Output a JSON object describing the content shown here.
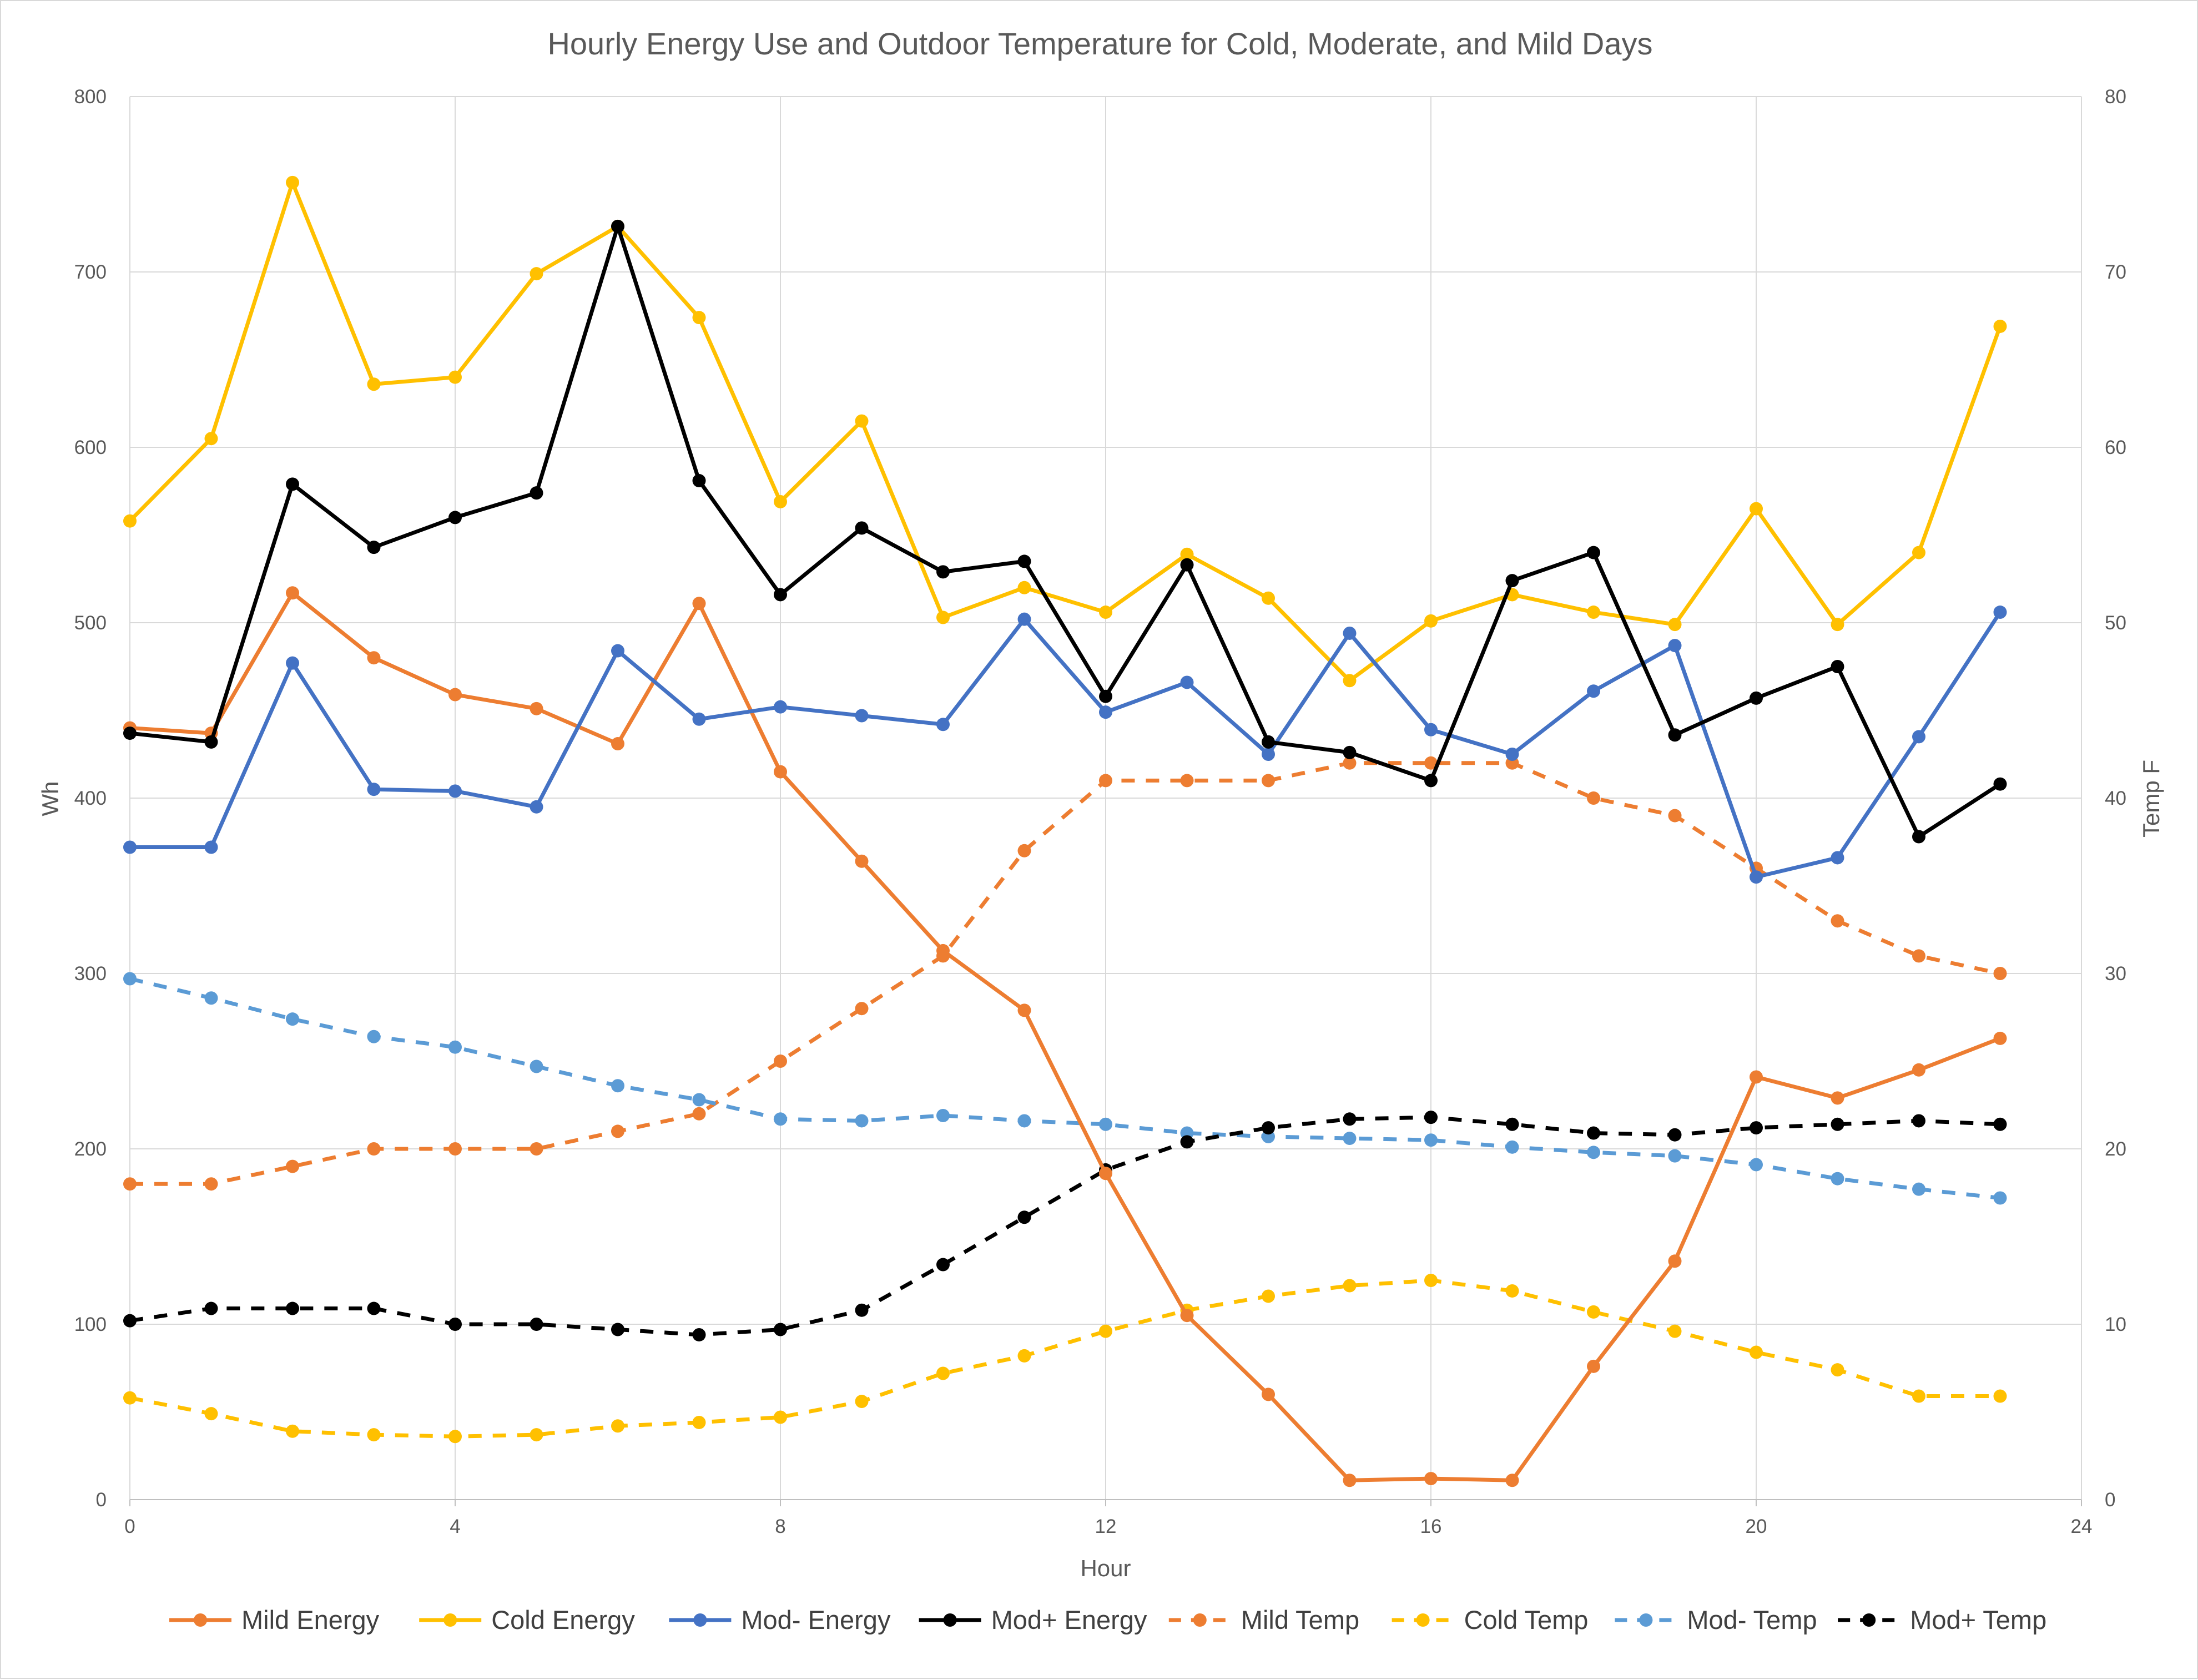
{
  "chart_data": {
    "type": "line",
    "title": "Hourly Energy Use and Outdoor Temperature for Cold, Moderate, and Mild Days",
    "xlabel": "Hour",
    "ylabel": "Wh",
    "y2label": "Temp F",
    "xlim": [
      0,
      24
    ],
    "ylim": [
      0,
      800
    ],
    "y2lim": [
      0,
      80
    ],
    "x_ticks": [
      "0",
      "4",
      "8",
      "12",
      "16",
      "20",
      "24"
    ],
    "y_ticks": [
      "0",
      "100",
      "200",
      "300",
      "400",
      "500",
      "600",
      "700",
      "800"
    ],
    "y2_ticks": [
      "0",
      "10",
      "20",
      "30",
      "40",
      "50",
      "60",
      "70",
      "80"
    ],
    "grid": true,
    "legend_position": "bottom",
    "x": [
      0,
      1,
      2,
      3,
      4,
      5,
      6,
      7,
      8,
      9,
      10,
      11,
      12,
      13,
      14,
      15,
      16,
      17,
      18,
      19,
      20,
      21,
      22,
      23
    ],
    "series": [
      {
        "name": "Mild Energy",
        "axis": "left",
        "color": "#ED7D31",
        "dashed": false,
        "values": [
          440,
          437,
          517,
          480,
          459,
          451,
          431,
          511,
          415,
          364,
          313,
          279,
          186,
          105,
          60,
          11,
          12,
          11,
          76,
          136,
          241,
          229,
          245,
          263
        ]
      },
      {
        "name": "Cold Energy",
        "axis": "left",
        "color": "#FFC000",
        "dashed": false,
        "values": [
          558,
          605,
          751,
          636,
          640,
          699,
          726,
          674,
          569,
          615,
          503,
          520,
          506,
          539,
          514,
          467,
          501,
          516,
          506,
          499,
          565,
          499,
          540,
          669
        ]
      },
      {
        "name": "Mod- Energy",
        "axis": "left",
        "color": "#4472C4",
        "dashed": false,
        "values": [
          372,
          372,
          477,
          405,
          404,
          395,
          484,
          445,
          452,
          447,
          442,
          502,
          449,
          466,
          425,
          494,
          439,
          425,
          461,
          487,
          355,
          366,
          435,
          506
        ]
      },
      {
        "name": "Mod+ Energy",
        "axis": "left",
        "color": "#000000",
        "dashed": false,
        "values": [
          437,
          432,
          579,
          543,
          560,
          574,
          726,
          581,
          516,
          554,
          529,
          535,
          458,
          533,
          432,
          426,
          410,
          524,
          540,
          436,
          457,
          475,
          378,
          408
        ]
      },
      {
        "name": "Mild Temp",
        "axis": "right",
        "color": "#ED7D31",
        "dashed": true,
        "values": [
          18,
          18,
          19,
          20,
          20,
          20,
          21,
          22,
          25,
          28,
          31,
          37,
          41,
          41,
          41,
          42,
          42,
          42,
          40,
          39,
          36,
          33,
          31,
          30
        ]
      },
      {
        "name": "Cold Temp",
        "axis": "right",
        "color": "#FFC000",
        "dashed": true,
        "values": [
          5.8,
          4.9,
          3.9,
          3.7,
          3.6,
          3.7,
          4.2,
          4.4,
          4.7,
          5.6,
          7.2,
          8.2,
          9.6,
          10.8,
          11.6,
          12.2,
          12.5,
          11.9,
          10.7,
          9.6,
          8.4,
          7.4,
          5.9,
          5.9
        ]
      },
      {
        "name": "Mod- Temp",
        "axis": "right",
        "color": "#5B9BD5",
        "dashed": true,
        "values": [
          29.7,
          28.6,
          27.4,
          26.4,
          25.8,
          24.7,
          23.6,
          22.8,
          21.7,
          21.6,
          21.9,
          21.6,
          21.4,
          20.9,
          20.7,
          20.6,
          20.5,
          20.1,
          19.8,
          19.6,
          19.1,
          18.3,
          17.7,
          17.2
        ]
      },
      {
        "name": "Mod+ Temp",
        "axis": "right",
        "color": "#000000",
        "dashed": true,
        "values": [
          10.2,
          10.9,
          10.9,
          10.9,
          10,
          10,
          9.7,
          9.4,
          9.7,
          10.8,
          13.4,
          16.1,
          18.8,
          20.4,
          21.2,
          21.7,
          21.8,
          21.4,
          20.9,
          20.8,
          21.2,
          21.4,
          21.6,
          21.4
        ]
      }
    ]
  }
}
